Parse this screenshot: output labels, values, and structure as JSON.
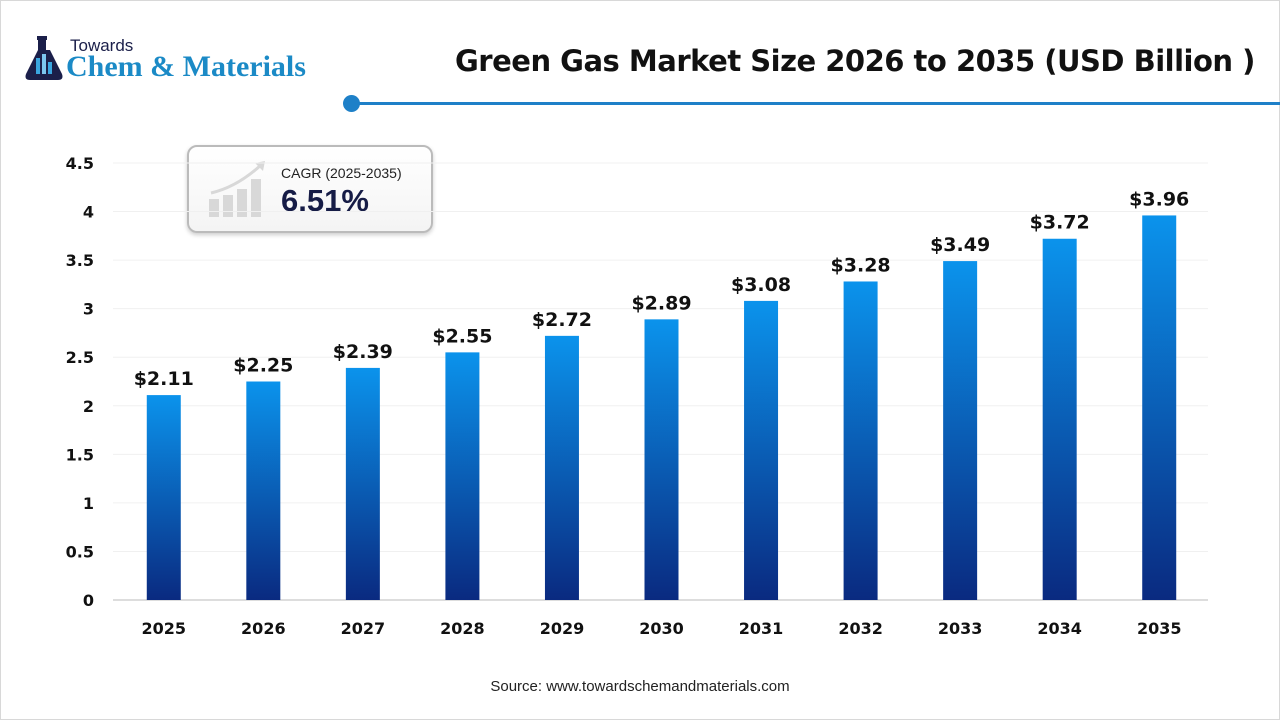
{
  "logo": {
    "line1": "Towards",
    "line2": "Chem & Materials"
  },
  "title": "Green Gas Market Size 2026 to 2035 (USD Billion )",
  "cagr": {
    "label": "CAGR (2025-2035)",
    "value": "6.51%"
  },
  "source": "Source: www.towardschemandmaterials.com",
  "colors": {
    "bar_top": "#0b93ec",
    "bar_bottom": "#0a2a80",
    "accent": "#1e80c8"
  },
  "chart_data": {
    "type": "bar",
    "title": "Green Gas Market Size 2026 to 2035 (USD Billion )",
    "categories": [
      "2025",
      "2026",
      "2027",
      "2028",
      "2029",
      "2030",
      "2031",
      "2032",
      "2033",
      "2034",
      "2035"
    ],
    "values": [
      2.11,
      2.25,
      2.39,
      2.55,
      2.72,
      2.89,
      3.08,
      3.28,
      3.49,
      3.72,
      3.96
    ],
    "data_labels": [
      "$2.11",
      "$2.25",
      "$2.39",
      "$2.55",
      "$2.72",
      "$2.89",
      "$3.08",
      "$3.28",
      "$3.49",
      "$3.72",
      "$3.96"
    ],
    "yticks": [
      "0",
      "0.5",
      "1",
      "1.5",
      "2",
      "2.5",
      "3",
      "3.5",
      "4",
      "4.5"
    ],
    "ylim": [
      0,
      4.5
    ],
    "grid": true,
    "xlabel": "",
    "ylabel": ""
  }
}
